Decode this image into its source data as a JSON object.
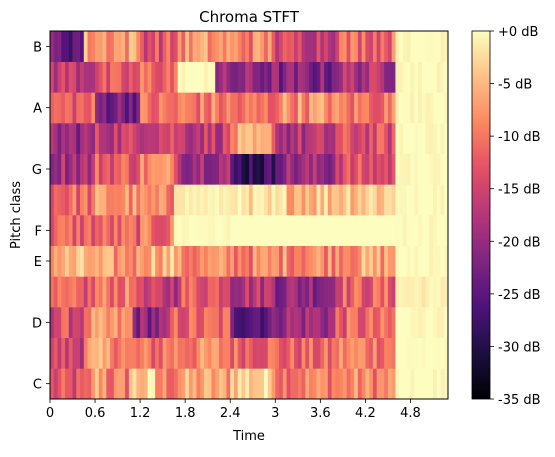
{
  "chart_data": {
    "type": "heatmap",
    "title": "Chroma STFT",
    "xlabel": "Time",
    "ylabel": "Pitch class",
    "x_ticks": [
      "0",
      "0.6",
      "1.2",
      "1.8",
      "2.4",
      "3",
      "3.6",
      "4.2",
      "4.8"
    ],
    "x_tick_values": [
      0,
      0.6,
      1.2,
      1.8,
      2.4,
      3.0,
      3.6,
      4.2,
      4.8
    ],
    "xlim": [
      0,
      5.3
    ],
    "rows": [
      "C",
      "C#",
      "D",
      "D#",
      "E",
      "F",
      "F#",
      "G",
      "G#",
      "A",
      "A#",
      "B"
    ],
    "y_ticks": [
      "C",
      "D",
      "E",
      "F",
      "G",
      "A",
      "B"
    ],
    "time_step": 0.05,
    "segments": [
      {
        "row": "C",
        "spans": [
          [
            0.0,
            0.55,
            -14
          ],
          [
            0.55,
            0.75,
            -6
          ],
          [
            0.75,
            1.05,
            -10
          ],
          [
            1.05,
            1.4,
            -4
          ],
          [
            1.4,
            1.7,
            -9
          ],
          [
            1.7,
            2.4,
            -7
          ],
          [
            2.4,
            3.0,
            -3
          ],
          [
            3.0,
            3.8,
            -9
          ],
          [
            3.8,
            4.6,
            -9
          ],
          [
            4.6,
            5.3,
            -1
          ]
        ]
      },
      {
        "row": "C#",
        "spans": [
          [
            0.0,
            0.45,
            -15
          ],
          [
            0.45,
            1.0,
            -8
          ],
          [
            1.0,
            1.5,
            -11
          ],
          [
            1.5,
            2.4,
            -9
          ],
          [
            2.4,
            3.0,
            -11
          ],
          [
            3.0,
            3.8,
            -12
          ],
          [
            3.8,
            4.6,
            -9
          ],
          [
            4.6,
            5.3,
            -1
          ]
        ]
      },
      {
        "row": "D",
        "spans": [
          [
            0.0,
            0.5,
            -14
          ],
          [
            0.5,
            1.1,
            -9
          ],
          [
            1.1,
            1.6,
            -21
          ],
          [
            1.6,
            2.4,
            -12
          ],
          [
            2.4,
            3.0,
            -24
          ],
          [
            3.0,
            3.8,
            -19
          ],
          [
            3.8,
            4.6,
            -12
          ],
          [
            4.6,
            5.3,
            -1
          ]
        ]
      },
      {
        "row": "D#",
        "spans": [
          [
            0.0,
            0.6,
            -13
          ],
          [
            0.6,
            1.2,
            -10
          ],
          [
            1.2,
            1.7,
            -17
          ],
          [
            1.7,
            2.4,
            -12
          ],
          [
            2.4,
            3.0,
            -17
          ],
          [
            3.0,
            3.8,
            -20
          ],
          [
            3.8,
            4.6,
            -12
          ],
          [
            4.6,
            5.3,
            -2
          ]
        ]
      },
      {
        "row": "E",
        "spans": [
          [
            0.0,
            0.6,
            -6
          ],
          [
            0.6,
            1.2,
            -8
          ],
          [
            1.2,
            1.7,
            -5
          ],
          [
            1.7,
            2.4,
            -9
          ],
          [
            2.4,
            3.0,
            -9
          ],
          [
            3.0,
            3.8,
            -8
          ],
          [
            3.8,
            4.6,
            -7
          ],
          [
            4.6,
            5.3,
            -1
          ]
        ]
      },
      {
        "row": "F",
        "spans": [
          [
            0.0,
            0.6,
            -12
          ],
          [
            0.6,
            1.2,
            -12
          ],
          [
            1.2,
            1.65,
            -11
          ],
          [
            1.65,
            2.5,
            -1
          ],
          [
            2.5,
            4.6,
            0
          ],
          [
            4.6,
            5.3,
            -1
          ]
        ]
      },
      {
        "row": "F#",
        "spans": [
          [
            0.0,
            0.6,
            -11
          ],
          [
            0.6,
            1.2,
            -8
          ],
          [
            1.2,
            1.65,
            -10
          ],
          [
            1.65,
            2.5,
            -2
          ],
          [
            2.5,
            3.8,
            -4
          ],
          [
            3.8,
            4.6,
            -3
          ],
          [
            4.6,
            5.3,
            -1
          ]
        ]
      },
      {
        "row": "G",
        "spans": [
          [
            0.0,
            0.6,
            -18
          ],
          [
            0.6,
            1.2,
            -12
          ],
          [
            1.2,
            1.7,
            -9
          ],
          [
            1.7,
            2.4,
            -18
          ],
          [
            2.4,
            3.0,
            -28
          ],
          [
            3.0,
            3.8,
            -20
          ],
          [
            3.8,
            4.6,
            -14
          ],
          [
            4.6,
            5.3,
            -1
          ]
        ]
      },
      {
        "row": "G#",
        "spans": [
          [
            0.0,
            0.6,
            -20
          ],
          [
            0.6,
            1.2,
            -16
          ],
          [
            1.2,
            1.7,
            -14
          ],
          [
            1.7,
            2.4,
            -16
          ],
          [
            2.4,
            3.0,
            -8
          ],
          [
            3.0,
            3.8,
            -18
          ],
          [
            3.8,
            4.6,
            -14
          ],
          [
            4.6,
            5.3,
            -1
          ]
        ]
      },
      {
        "row": "A",
        "spans": [
          [
            0.0,
            0.6,
            -12
          ],
          [
            0.6,
            1.2,
            -22
          ],
          [
            1.2,
            1.7,
            -11
          ],
          [
            1.7,
            2.4,
            -10
          ],
          [
            2.4,
            3.0,
            -11
          ],
          [
            3.0,
            3.8,
            -8
          ],
          [
            3.8,
            4.6,
            -10
          ],
          [
            4.6,
            5.3,
            -1
          ]
        ]
      },
      {
        "row": "A#",
        "spans": [
          [
            0.0,
            0.6,
            -16
          ],
          [
            0.6,
            1.2,
            -14
          ],
          [
            1.2,
            1.7,
            -11
          ],
          [
            1.7,
            2.2,
            -1
          ],
          [
            2.2,
            3.0,
            -21
          ],
          [
            3.0,
            3.8,
            -22
          ],
          [
            3.8,
            4.6,
            -18
          ],
          [
            4.6,
            5.3,
            -1
          ]
        ]
      },
      {
        "row": "B",
        "spans": [
          [
            0.0,
            0.45,
            -24
          ],
          [
            0.45,
            1.2,
            -7
          ],
          [
            1.2,
            1.7,
            -13
          ],
          [
            1.7,
            2.4,
            -8
          ],
          [
            2.4,
            3.0,
            -9
          ],
          [
            3.0,
            3.8,
            -15
          ],
          [
            3.8,
            4.6,
            -11
          ],
          [
            4.6,
            5.3,
            -1
          ]
        ]
      }
    ],
    "colorbar": {
      "range": [
        -35,
        0
      ],
      "ticks": [
        "+0 dB",
        "-5 dB",
        "-10 dB",
        "-15 dB",
        "-20 dB",
        "-25 dB",
        "-30 dB",
        "-35 dB"
      ],
      "tick_values": [
        0,
        -5,
        -10,
        -15,
        -20,
        -25,
        -30,
        -35
      ],
      "colormap": "magma"
    },
    "grid": false
  }
}
